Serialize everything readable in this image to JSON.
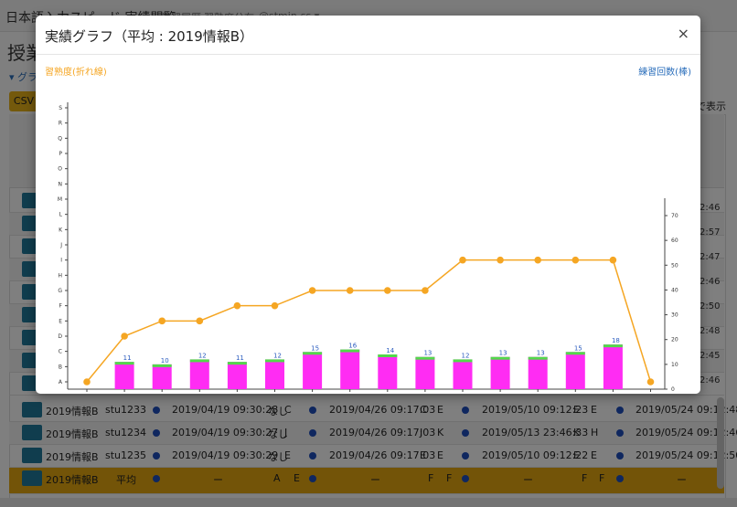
{
  "background": {
    "brand": "日本語入力スピード 実績閲覧",
    "nav_links": [
      "学習履歴",
      "習熟度分布",
      "@stmin-ss ▾"
    ],
    "page_title": "授業",
    "toggle_label": "▾ グラ",
    "csv_label": "CSV",
    "right_text": "で表示",
    "rows": [
      {
        "class": "2019情報B",
        "id": "stu1233",
        "dot1": true,
        "t1": "2019/04/19 09:30:28",
        "v1": "なし",
        "v2": "C",
        "dot2": true,
        "t2": "2019/04/26 09:17:03",
        "v3": "C",
        "v4": "E",
        "dot3": true,
        "t3": "2019/05/10 09:12:23",
        "v5": "E",
        "v6": "E",
        "dot4": true,
        "t4": "2019/05/24 09:12:48"
      },
      {
        "class": "2019情報B",
        "id": "stu1234",
        "dot1": true,
        "t1": "2019/04/19 09:30:27",
        "v1": "なし",
        "v2": "J",
        "dot2": true,
        "t2": "2019/04/26 09:17:03",
        "v3": "J",
        "v4": "K",
        "dot3": true,
        "t3": "2019/05/13 23:46:33",
        "v5": "K",
        "v6": "H",
        "dot4": true,
        "t4": "2019/05/24 09:12:46"
      },
      {
        "class": "2019情報B",
        "id": "stu1235",
        "dot1": true,
        "t1": "2019/04/19 09:30:29",
        "v1": "なし",
        "v2": "E",
        "dot2": true,
        "t2": "2019/04/26 09:17:03",
        "v3": "E",
        "v4": "E",
        "dot3": true,
        "t3": "2019/05/10 09:12:22",
        "v5": "E",
        "v6": "E",
        "dot4": true,
        "t4": "2019/05/24 09:12:50"
      }
    ],
    "avg_row": {
      "class": "2019情報B",
      "id": "平均",
      "dash1": "ー",
      "v1": "A",
      "v2": "E",
      "dash2": "ー",
      "v3": "F",
      "v4": "F",
      "dash3": "ー",
      "v5": "F",
      "v6": "F",
      "dash4": "ー"
    },
    "right_times": [
      "2:46",
      "2:57",
      "2:47",
      "2:46",
      "2:50",
      "2:48",
      "2:45",
      "2:46"
    ]
  },
  "modal": {
    "title": "実績グラフ（平均 : 2019情報B）",
    "close_label": "×",
    "legend_left": "習熟度(折れ線)",
    "legend_right": "練習回数(棒)"
  },
  "colors": {
    "line": "#f5a623",
    "bar": "#ff2cf3",
    "bar_top": "#52d94a",
    "bar_label": "#2a5bbf"
  },
  "chart_data": {
    "type": "bar",
    "x": [
      0,
      1,
      2,
      3,
      4,
      5,
      6,
      7,
      8,
      9,
      10,
      11,
      12,
      13,
      14,
      15
    ],
    "left_axis_levels": [
      "A",
      "B",
      "C",
      "D",
      "E",
      "F",
      "G",
      "H",
      "I",
      "J",
      "K",
      "L",
      "M",
      "N",
      "O",
      "P",
      "Q",
      "R",
      "S"
    ],
    "right_axis_ticks": [
      0,
      10,
      20,
      30,
      40,
      50,
      60,
      70
    ],
    "right_ylim": [
      0,
      77
    ],
    "series": [
      {
        "name": "習熟度(折れ線)",
        "kind": "line",
        "axis": "left",
        "values": [
          "A",
          "D",
          "E",
          "E",
          "F",
          "F",
          "G",
          "G",
          "G",
          "G",
          "I",
          "I",
          "I",
          "I",
          "I",
          "A"
        ]
      },
      {
        "name": "練習回数(棒)",
        "kind": "bar",
        "axis": "right",
        "values": [
          null,
          11,
          10,
          12,
          11,
          12,
          15,
          16,
          14,
          13,
          12,
          13,
          13,
          15,
          18,
          null
        ]
      }
    ]
  }
}
